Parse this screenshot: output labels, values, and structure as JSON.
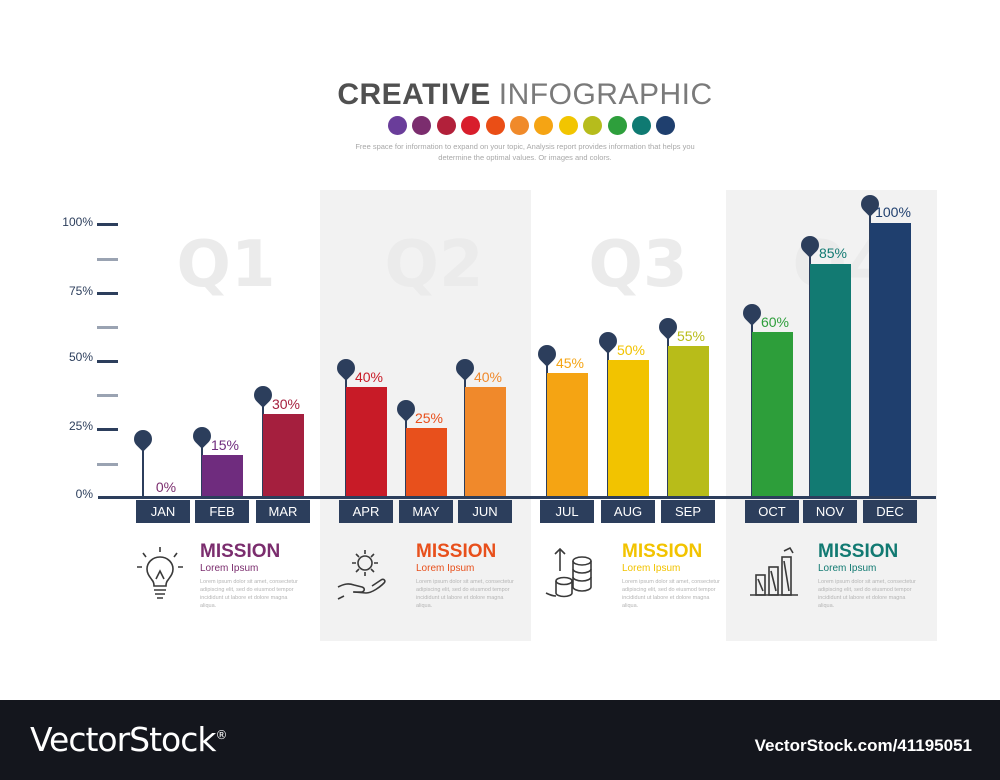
{
  "header": {
    "title_bold": "CREATIVE",
    "title_light": "INFOGRAPHIC",
    "subtitle_line1": "Free space for information to expand on your topic, Analysis report provides information that helps you",
    "subtitle_line2": "determine the optimal values. Or images and colors.",
    "dot_colors": [
      "#6a3d9a",
      "#7b2d6e",
      "#b2203a",
      "#d81e2c",
      "#ea4e16",
      "#f08a2a",
      "#f5a414",
      "#f2c500",
      "#b6bc1c",
      "#2e9f3c",
      "#0f7a72",
      "#1f3f6e"
    ]
  },
  "chart_data": {
    "type": "bar",
    "title": "",
    "xlabel": "",
    "ylabel": "",
    "ylim": [
      0,
      100
    ],
    "y_ticks": [
      "100%",
      "75%",
      "50%",
      "25%",
      "0%"
    ],
    "categories": [
      "JAN",
      "FEB",
      "MAR",
      "APR",
      "MAY",
      "JUN",
      "JUL",
      "AUG",
      "SEP",
      "OCT",
      "NOV",
      "DEC"
    ],
    "values": [
      0,
      15,
      30,
      40,
      25,
      40,
      45,
      50,
      55,
      60,
      85,
      100
    ],
    "value_labels": [
      "0%",
      "15%",
      "30%",
      "40%",
      "25%",
      "40%",
      "45%",
      "50%",
      "55%",
      "60%",
      "85%",
      "100%"
    ],
    "colors": [
      "#7b2d6e",
      "#6f2c7e",
      "#a51f3e",
      "#c81b27",
      "#e8501c",
      "#f0892b",
      "#f5a413",
      "#f2c300",
      "#b8bc19",
      "#2d9e3a",
      "#127a72",
      "#1f3f6e"
    ],
    "label_colors": [
      "#7b2d6e",
      "#6f2c7e",
      "#a51f3e",
      "#c81b27",
      "#e8501c",
      "#f0892b",
      "#f5a413",
      "#f2c300",
      "#b8bc19",
      "#2d9e3a",
      "#127a72",
      "#1f3f6e"
    ],
    "grid": false,
    "quarters": [
      "Q1",
      "Q2",
      "Q3",
      "Q4"
    ]
  },
  "missions": [
    {
      "title": "MISSION",
      "subtitle": "Lorem Ipsum",
      "color": "#7b2d6e",
      "icon": "lightbulb-icon",
      "desc": "Lorem ipsum dolor sit amet, consectetur adipiscing elit, sed do eiusmod tempor incididunt ut labore et dolore magna aliqua."
    },
    {
      "title": "MISSION",
      "subtitle": "Lorem Ipsum",
      "color": "#e8501c",
      "icon": "gear-hand-icon",
      "desc": "Lorem ipsum dolor sit amet, consectetur adipiscing elit, sed do eiusmod tempor incididunt ut labore et dolore magna aliqua."
    },
    {
      "title": "MISSION",
      "subtitle": "Lorem Ipsum",
      "color": "#f2c300",
      "icon": "coins-growth-icon",
      "desc": "Lorem ipsum dolor sit amet, consectetur adipiscing elit, sed do eiusmod tempor incididunt ut labore et dolore magna aliqua."
    },
    {
      "title": "MISSION",
      "subtitle": "Lorem Ipsum",
      "color": "#127a72",
      "icon": "bar-chart-icon",
      "desc": "Lorem ipsum dolor sit amet, consectetur adipiscing elit, sed do eiusmod tempor incididunt ut labore et dolore magna aliqua."
    }
  ],
  "footer": {
    "brand": "VectorStock",
    "brand_mark": "®",
    "image_id": "VectorStock.com/41195051"
  }
}
